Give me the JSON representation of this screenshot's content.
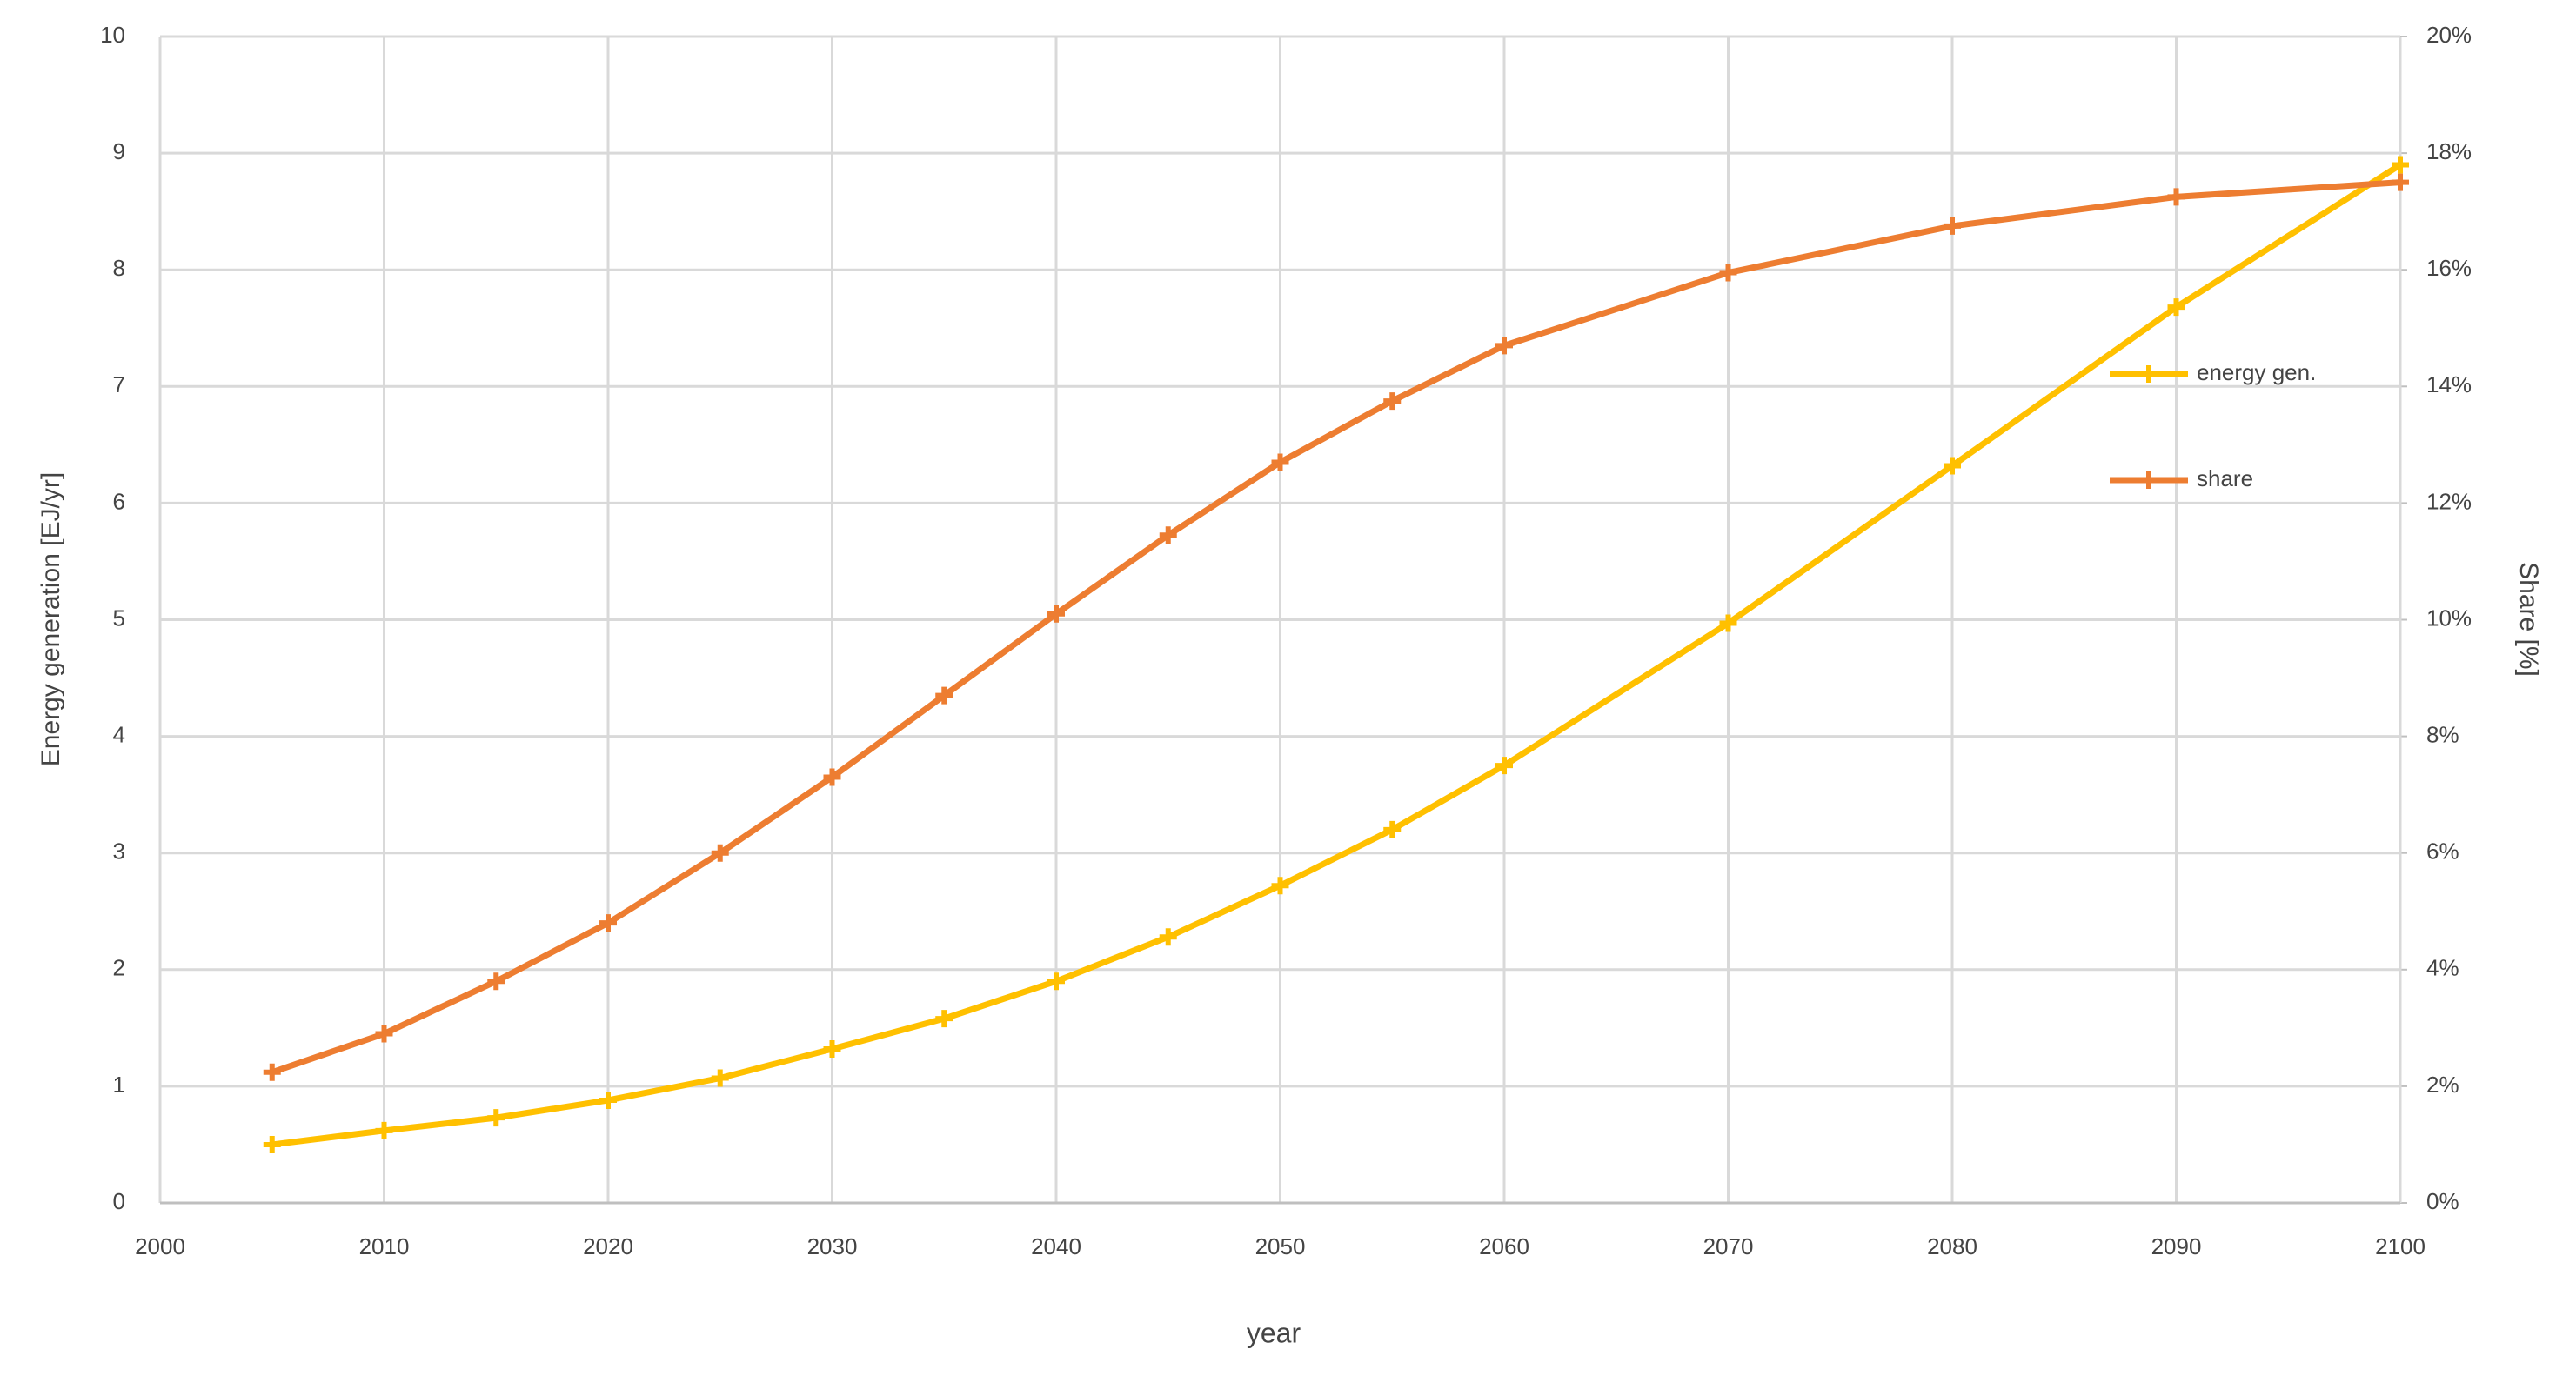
{
  "chart_data": {
    "type": "line",
    "xlabel": "year",
    "ylabel": "Energy generation [EJ/yr]",
    "y2label": "Share [%]",
    "x": [
      2005,
      2010,
      2015,
      2020,
      2025,
      2030,
      2035,
      2040,
      2045,
      2050,
      2055,
      2060,
      2070,
      2080,
      2090,
      2100
    ],
    "series": [
      {
        "name": "energy gen.",
        "color": "#FFC000",
        "values": [
          0.5,
          0.62,
          0.73,
          0.88,
          1.07,
          1.32,
          1.58,
          1.9,
          2.28,
          2.72,
          3.2,
          3.75,
          4.97,
          6.32,
          7.68,
          8.9
        ]
      },
      {
        "name": "share",
        "color": "#ED7D31",
        "axis": "y2",
        "values": [
          2.24,
          2.9,
          3.8,
          4.8,
          6.0,
          7.3,
          8.7,
          10.1,
          11.45,
          12.7,
          13.75,
          14.7,
          15.95,
          16.75,
          17.25,
          17.5
        ]
      }
    ],
    "xlim": [
      2000,
      2100
    ],
    "xticks": [
      2000,
      2010,
      2020,
      2030,
      2040,
      2050,
      2060,
      2070,
      2080,
      2090,
      2100
    ],
    "ylim": [
      0,
      10
    ],
    "yticks": [
      0,
      1,
      2,
      3,
      4,
      5,
      6,
      7,
      8,
      9,
      10
    ],
    "y2lim": [
      0,
      20
    ],
    "y2ticks": [
      {
        "value": 0,
        "label": "0%"
      },
      {
        "value": 2,
        "label": "2%"
      },
      {
        "value": 4,
        "label": "4%"
      },
      {
        "value": 6,
        "label": "6%"
      },
      {
        "value": 8,
        "label": "8%"
      },
      {
        "value": 10,
        "label": "10%"
      },
      {
        "value": 12,
        "label": "12%"
      },
      {
        "value": 14,
        "label": "14%"
      },
      {
        "value": 16,
        "label": "16%"
      },
      {
        "value": 18,
        "label": "18%"
      },
      {
        "value": 20,
        "label": "20%"
      }
    ],
    "grid": true,
    "legend": "right"
  }
}
